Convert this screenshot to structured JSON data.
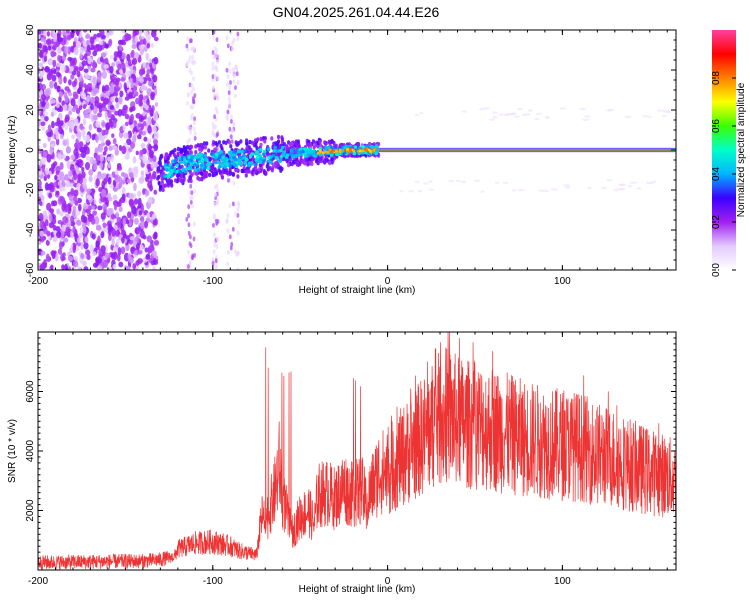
{
  "title": "GN04.2025.261.04.44.E26",
  "colors": {
    "snr_line": "#ee3333",
    "colormap": [
      "#ffffff",
      "#e3c9ff",
      "#a020f0",
      "#3b00ff",
      "#00b4ff",
      "#00ffc8",
      "#3cff00",
      "#ffff00",
      "#ff8000",
      "#ff0000",
      "#ff40a0"
    ]
  },
  "chart_data": [
    {
      "type": "heatmap",
      "title": "GN04.2025.261.04.44.E26",
      "xlabel": "Height of straight line (km)",
      "ylabel": "Frequency (Hz)",
      "xlim": [
        -200,
        165
      ],
      "ylim": [
        -60,
        60
      ],
      "x_ticks": [
        -200,
        -100,
        0,
        100
      ],
      "y_ticks": [
        -60,
        -40,
        -20,
        0,
        20,
        40,
        60
      ],
      "colorbar": {
        "label": "Normalized spectral amplitude",
        "range": [
          0,
          1
        ],
        "ticks": [
          0,
          0.2,
          0.4,
          0.6,
          0.8
        ]
      },
      "features": {
        "scattered_noise_x": [
          -200,
          -132
        ],
        "noise_stripes_x": [
          [
            -115,
            -110
          ],
          [
            -100,
            -97
          ],
          [
            -92,
            -85
          ]
        ],
        "carrier_start_x": -5,
        "carrier_freq": 0,
        "drift_track": [
          [
            -132,
            -13
          ],
          [
            -120,
            -8
          ],
          [
            -100,
            -5
          ],
          [
            -80,
            -4
          ],
          [
            -60,
            -2
          ],
          [
            -40,
            -1
          ],
          [
            -20,
            0
          ],
          [
            -5,
            0
          ]
        ]
      }
    },
    {
      "type": "line",
      "series": [
        {
          "x": [
            -200,
            -140,
            -130,
            -122,
            -120,
            -115,
            -110,
            -100,
            -90,
            -85,
            -75,
            -72,
            -70,
            -65,
            -62,
            -60,
            -58,
            -55,
            -50,
            -45,
            -42,
            -40,
            -35,
            -30,
            -25,
            -20,
            -15,
            -12,
            -10,
            -5,
            0,
            5,
            10,
            15,
            20,
            25,
            30,
            35,
            40,
            45,
            50,
            55,
            60,
            70,
            80,
            90,
            100,
            110,
            120,
            130,
            140,
            150,
            160,
            165
          ],
          "y": [
            250,
            300,
            350,
            450,
            700,
            800,
            900,
            950,
            800,
            650,
            500,
            1800,
            1600,
            2500,
            3500,
            2400,
            2000,
            1200,
            1800,
            2000,
            1500,
            2500,
            2600,
            2400,
            2800,
            2500,
            2700,
            2200,
            2600,
            3300,
            3300,
            3600,
            3900,
            4200,
            4500,
            4800,
            5100,
            5200,
            5000,
            4900,
            4900,
            4800,
            4750,
            4550,
            4400,
            4300,
            4200,
            4150,
            3900,
            3750,
            3500,
            3300,
            3150,
            3000
          ]
        }
      ],
      "xlabel": "Height of straight line (km)",
      "ylabel": "SNR (10 * v/v)",
      "xlim": [
        -200,
        165
      ],
      "ylim": [
        0,
        8000
      ],
      "x_ticks": [
        -200,
        -100,
        0,
        100
      ],
      "y_ticks": [
        2000,
        4000,
        6000
      ]
    }
  ]
}
